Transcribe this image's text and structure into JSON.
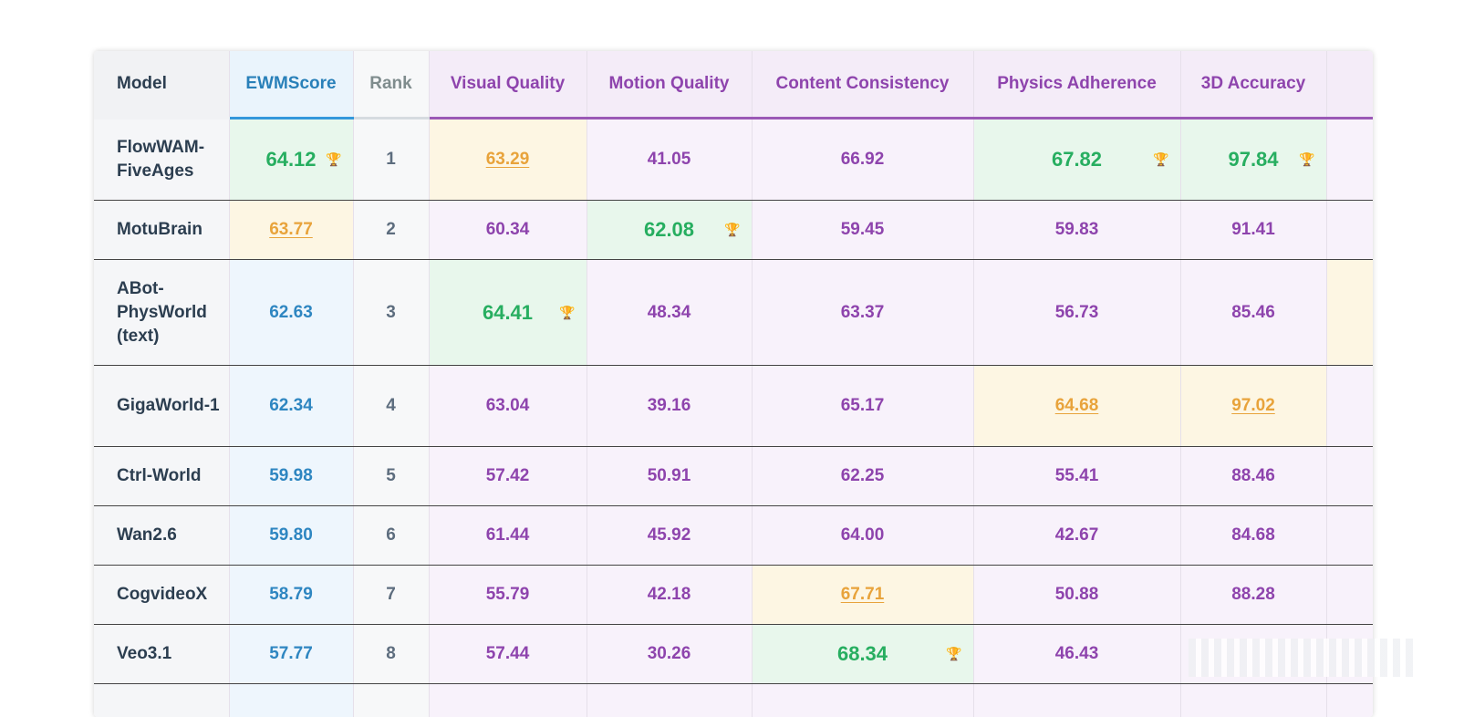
{
  "headers": {
    "model": "Model",
    "ewmscore": "EWMScore",
    "rank": "Rank",
    "visual": "Visual Quality",
    "motion": "Motion Quality",
    "content": "Content Consistency",
    "physics": "Physics Adherence",
    "accuracy3d": "3D Accuracy"
  },
  "trophy_glyph": "🏆",
  "rows": [
    {
      "model": "FlowWAM-FiveAges",
      "ewmscore": "64.12",
      "rank": "1",
      "visual": "63.29",
      "motion": "41.05",
      "content": "66.92",
      "physics": "67.82",
      "accuracy3d": "97.84"
    },
    {
      "model": "MotuBrain",
      "ewmscore": "63.77",
      "rank": "2",
      "visual": "60.34",
      "motion": "62.08",
      "content": "59.45",
      "physics": "59.83",
      "accuracy3d": "91.41"
    },
    {
      "model": "ABot-PhysWorld (text)",
      "ewmscore": "62.63",
      "rank": "3",
      "visual": "64.41",
      "motion": "48.34",
      "content": "63.37",
      "physics": "56.73",
      "accuracy3d": "85.46"
    },
    {
      "model": "GigaWorld-1",
      "ewmscore": "62.34",
      "rank": "4",
      "visual": "63.04",
      "motion": "39.16",
      "content": "65.17",
      "physics": "64.68",
      "accuracy3d": "97.02"
    },
    {
      "model": "Ctrl-World",
      "ewmscore": "59.98",
      "rank": "5",
      "visual": "57.42",
      "motion": "50.91",
      "content": "62.25",
      "physics": "55.41",
      "accuracy3d": "88.46"
    },
    {
      "model": "Wan2.6",
      "ewmscore": "59.80",
      "rank": "6",
      "visual": "61.44",
      "motion": "45.92",
      "content": "64.00",
      "physics": "42.67",
      "accuracy3d": "84.68"
    },
    {
      "model": "CogvideoX",
      "ewmscore": "58.79",
      "rank": "7",
      "visual": "55.79",
      "motion": "42.18",
      "content": "67.71",
      "physics": "50.88",
      "accuracy3d": "88.28"
    },
    {
      "model": "Veo3.1",
      "ewmscore": "57.77",
      "rank": "8",
      "visual": "57.44",
      "motion": "30.26",
      "content": "68.34",
      "physics": "46.43",
      "accuracy3d": ""
    }
  ],
  "colors": {
    "best_text": "#27ae60",
    "second_text": "#e8a33b",
    "ewm_text": "#2e86c1",
    "metric_text": "#8e44ad",
    "model_text": "#2c3e50"
  }
}
